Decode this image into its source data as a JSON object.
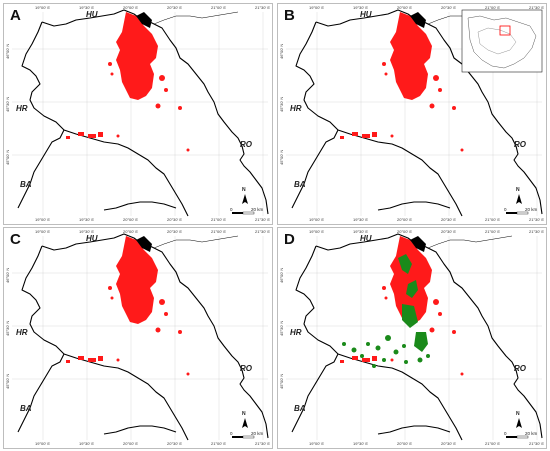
{
  "figure": {
    "panels": [
      {
        "letter": "A",
        "green_patches": false,
        "inset_map": false
      },
      {
        "letter": "B",
        "green_patches": false,
        "inset_map": true
      },
      {
        "letter": "C",
        "green_patches": false,
        "inset_map": false
      },
      {
        "letter": "D",
        "green_patches": true,
        "inset_map": false
      }
    ],
    "country_labels": {
      "north": "HU",
      "west": "HR",
      "southwest": "BA",
      "east": "RO"
    },
    "longitude_ticks": [
      "19°00' E",
      "19°30' E",
      "20°00' E",
      "20°30' E",
      "21°00' E",
      "21°30' E"
    ],
    "latitude_ticks": [
      "46°00' N",
      "45°30' N",
      "45°00' N"
    ],
    "scale_bar": {
      "zero": "0",
      "distance": "20 km"
    },
    "colors": {
      "occurrence_red": "#ff1a1a",
      "occurrence_green": "#1a8a1a",
      "border_line": "#000000",
      "graticule": "#d9d9d9",
      "inset_highlight": "#ff0000"
    }
  }
}
